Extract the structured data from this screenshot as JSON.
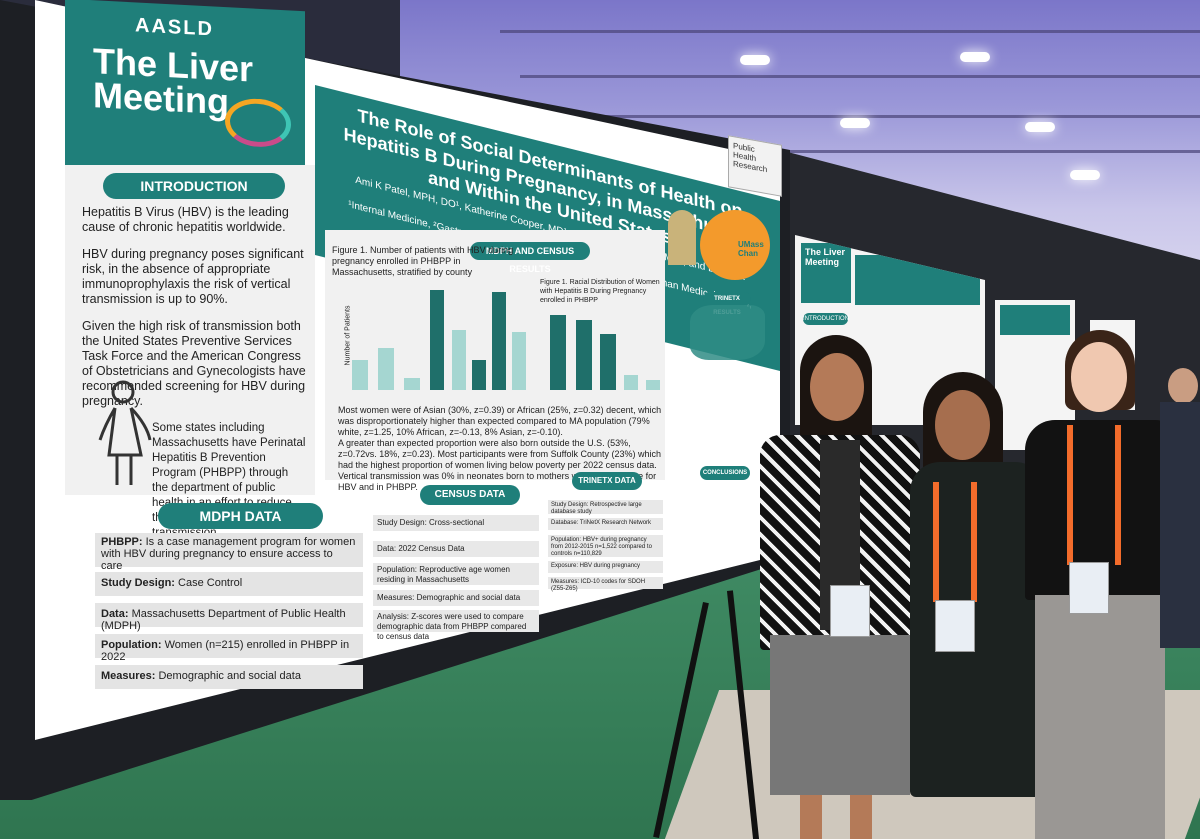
{
  "logo": {
    "org": "AASLD",
    "event": "The Liver Meeting"
  },
  "poster": {
    "title": "The Role of Social Determinants of Health on Hepatitis B During Pregnancy, in Massachusetts and Within the United States",
    "authors": "Ami K Patel, MPH, DO¹, Katherine Cooper, MD¹, Alessandro Colletta, MD², and Deepika Devuni, MD²",
    "affiliations": "¹Internal Medicine, ²Gastroenterology at University of Massachusetts Chan Medical School, Worcester MA, USA",
    "institution": "UMass Chan"
  },
  "introduction": {
    "heading": "INTRODUCTION",
    "p1": "Hepatitis B Virus (HBV) is the leading cause of chronic hepatitis worldwide.",
    "p2": "HBV during pregnancy poses significant risk, in the absence of appropriate immunoprophylaxis the risk of vertical transmission is up to 90%.",
    "p3": "Given the high risk of transmission both the United States Preventive Services Task Force and the American Congress of Obstetricians and Gynecologists have recommended screening for HBV during pregnancy.",
    "p4": "Some states including Massachusetts have Perinatal Hepatitis B Prevention Program (PHBPP) through the department of public health in an effort to reduce the risk of vertical transmission."
  },
  "results": {
    "heading": "MDPH AND CENSUS RESULTS",
    "fig1_caption": "Figure 1. Number of patients with HBV during pregnancy enrolled in PHBPP in Massachusetts, stratified by county",
    "fig1_ylabel": "Number of Patients",
    "fig2_caption": "Figure 1. Racial Distribution of Women with Hepatitis B During Pregnancy enrolled in PHBPP",
    "b1": "Most women were of Asian (30%, z=0.39) or African (25%, z=0.32) decent, which was disproportionately higher than expected compared to MA population (79% white, z=1.25, 10% African, z=-0.13, 8% Asian, z=-0.10).",
    "b2": "A greater than expected proportion were also born outside the U.S. (53%, z=0.72vs. 18%, z=0.23). Most participants were from Suffolk County (23%) which had the highest proportion of women living below poverty per 2022 census data.",
    "b3": "Vertical transmission was 0% in neonates born to mothers who were positive for HBV and in PHBPP."
  },
  "mdph": {
    "heading": "MDPH DATA",
    "phbpp_label": "PHBPP:",
    "phbpp_text": "Is a case management program for women with HBV during pregnancy to ensure access to care",
    "design_label": "Study Design:",
    "design_text": "Case Control",
    "data_label": "Data:",
    "data_text": "Massachusetts Department of Public Health (MDPH)",
    "population_label": "Population:",
    "population_text": "Women (n=215) enrolled in PHBPP in 2022",
    "measures_label": "Measures:",
    "measures_text": "Demographic and social data"
  },
  "census": {
    "heading": "CENSUS DATA",
    "design": "Study Design: Cross-sectional",
    "data": "Data: 2022 Census Data",
    "population": "Population: Reproductive age women residing in Massachusetts",
    "measures": "Measures: Demographic and social data",
    "analysis": "Analysis: Z-scores were used to compare demographic data from PHBPP compared to census data"
  },
  "trinetx": {
    "heading": "TRINETX DATA",
    "design": "Study Design: Retrospective large database study",
    "database": "Database: TriNetX Research Network",
    "population": "Population: HBV+ during pregnancy from 2012-2015 n=1,522 compared to controls n=110,829",
    "exposure": "Exposure: HBV during pregnancy",
    "measures": "Measures: ICD-10 codes for SDOH (Z55-Z65)",
    "results_heading": "TRINETX RESULTS",
    "conclusions_heading": "CONCLUSIONS"
  },
  "neighbor_poster": {
    "logo": "The Liver Meeting",
    "intro": "INTRODUCTION"
  },
  "sign": {
    "text": "Public Health Research"
  }
}
